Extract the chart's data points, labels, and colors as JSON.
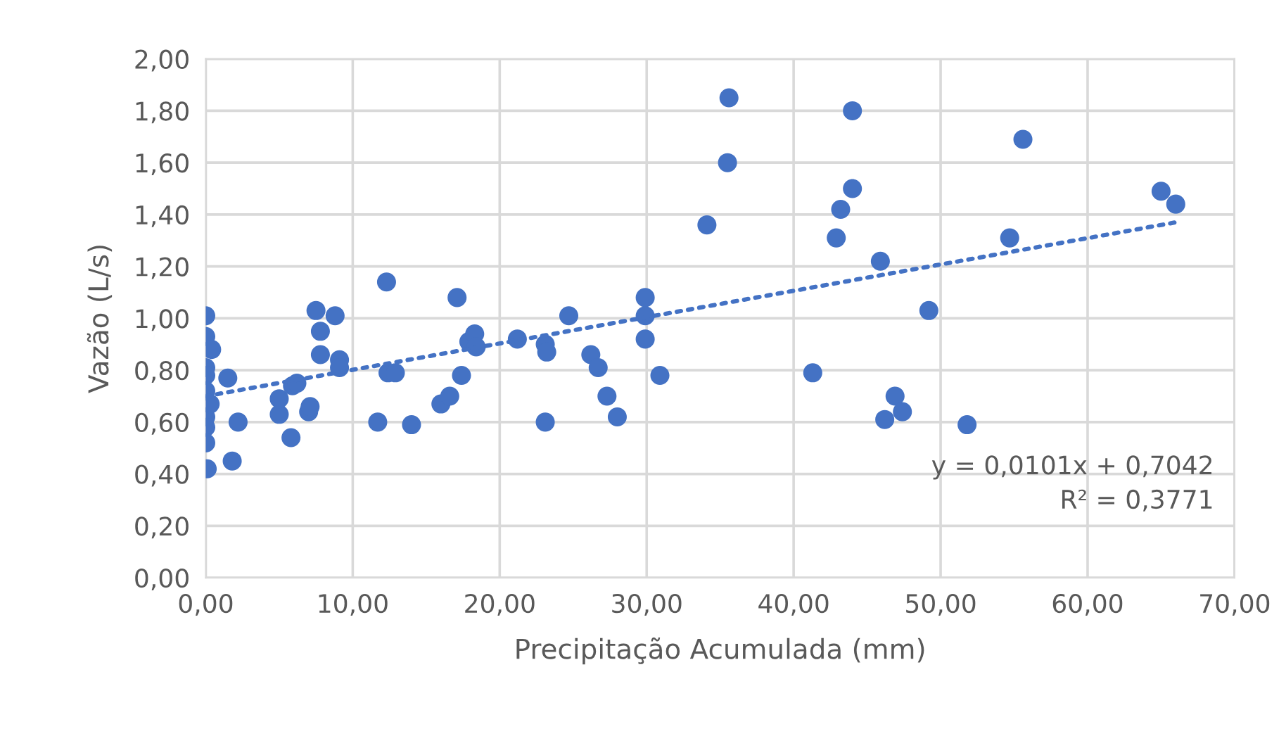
{
  "chart_data": {
    "type": "scatter",
    "xlabel": "Precipitação Acumulada (mm)",
    "ylabel": "Vazão (L/s)",
    "series": [
      {
        "color": "#4472c4",
        "marker": "circle",
        "x": [
          0,
          0,
          0.4,
          0,
          0,
          0,
          0,
          0,
          0,
          0.1,
          0.3,
          1.5,
          2.2,
          1.8,
          5.0,
          5.0,
          5.8,
          5.9,
          6.2,
          7.0,
          7.1,
          7.5,
          7.8,
          7.8,
          8.8,
          9.1,
          9.1,
          11.7,
          12.3,
          12.4,
          12.9,
          14.0,
          16.0,
          16.6,
          17.1,
          17.4,
          17.9,
          18.3,
          18.4,
          21.2,
          23.1,
          23.1,
          23.2,
          24.7,
          26.2,
          26.7,
          27.3,
          28.0,
          29.9,
          29.9,
          29.9,
          30.9,
          34.1,
          35.5,
          35.6,
          41.3,
          42.9,
          43.2,
          44.0,
          44.0,
          45.9,
          46.2,
          46.9,
          47.4,
          49.2,
          51.8,
          54.7,
          55.6,
          65.0,
          66.0
        ],
        "values": [
          1.01,
          0.93,
          0.88,
          0.81,
          0.78,
          0.72,
          0.62,
          0.58,
          0.52,
          0.42,
          0.67,
          0.77,
          0.6,
          0.45,
          0.63,
          0.69,
          0.54,
          0.74,
          0.75,
          0.64,
          0.66,
          1.03,
          0.95,
          0.86,
          1.01,
          0.84,
          0.81,
          0.6,
          1.14,
          0.79,
          0.79,
          0.59,
          0.67,
          0.7,
          1.08,
          0.78,
          0.91,
          0.94,
          0.89,
          0.92,
          0.6,
          0.9,
          0.87,
          1.01,
          0.86,
          0.81,
          0.7,
          0.62,
          1.08,
          1.01,
          0.92,
          0.78,
          1.36,
          1.6,
          1.85,
          0.79,
          1.31,
          1.42,
          1.8,
          1.5,
          1.22,
          0.61,
          0.7,
          0.64,
          1.03,
          0.59,
          1.31,
          1.69,
          1.49,
          1.44
        ]
      },
      {
        "type": "line",
        "color": "#4472c4",
        "line_style": "dotted",
        "x": [
          0,
          66
        ],
        "values": [
          0.7,
          1.37
        ]
      }
    ],
    "annotations": [
      "y = 0,0101x + 0,7042",
      "R² = 0,3771"
    ],
    "xlim": [
      0,
      70
    ],
    "xticks": [
      {
        "value": 0,
        "label": "0,00"
      },
      {
        "value": 10,
        "label": "10,00"
      },
      {
        "value": 20,
        "label": "20,00"
      },
      {
        "value": 30,
        "label": "30,00"
      },
      {
        "value": 40,
        "label": "40,00"
      },
      {
        "value": 50,
        "label": "50,00"
      },
      {
        "value": 60,
        "label": "60,00"
      },
      {
        "value": 70,
        "label": "70,00"
      }
    ],
    "ylim": [
      0,
      2
    ],
    "yticks": [
      {
        "value": 0,
        "label": "0,00"
      },
      {
        "value": 0.2,
        "label": "0,20"
      },
      {
        "value": 0.4,
        "label": "0,40"
      },
      {
        "value": 0.6,
        "label": "0,60"
      },
      {
        "value": 0.8,
        "label": "0,80"
      },
      {
        "value": 1.0,
        "label": "1,00"
      },
      {
        "value": 1.2,
        "label": "1,20"
      },
      {
        "value": 1.4,
        "label": "1,40"
      },
      {
        "value": 1.6,
        "label": "1,60"
      },
      {
        "value": 1.8,
        "label": "1,80"
      },
      {
        "value": 2.0,
        "label": "2,00"
      }
    ],
    "grid": true,
    "legend": false
  }
}
